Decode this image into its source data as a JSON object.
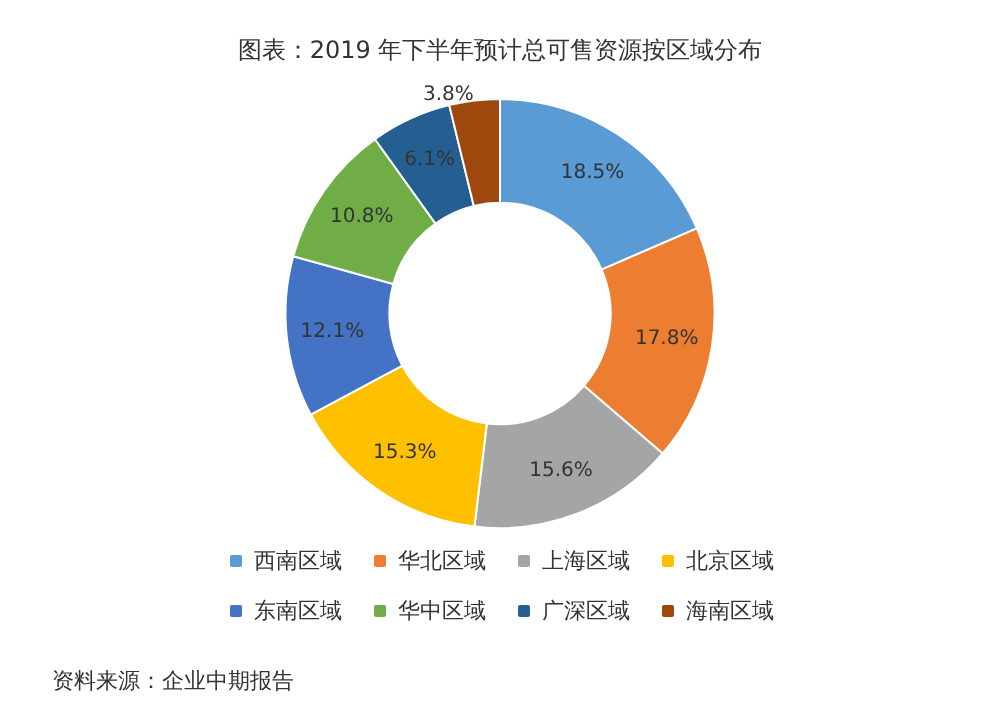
{
  "chart_data": {
    "type": "donut",
    "title": "图表：2019 年下半年预计总可售资源按区域分布",
    "categories": [
      "西南区域",
      "华北区域",
      "上海区域",
      "北京区域",
      "东南区域",
      "华中区域",
      "广深区域",
      "海南区域"
    ],
    "values": [
      18.5,
      17.8,
      15.6,
      15.3,
      12.1,
      10.8,
      6.1,
      3.8
    ],
    "colors": [
      "#5b9bd5",
      "#ed7d31",
      "#a5a5a5",
      "#ffc000",
      "#4472c4",
      "#70ad47",
      "#255e91",
      "#9e480e"
    ],
    "value_labels": [
      "18.5%",
      "17.8%",
      "15.6%",
      "15.3%",
      "12.1%",
      "10.8%",
      "6.1%",
      "3.8%"
    ],
    "legend": "bottom",
    "annotations": [
      "资料来源：企业中期报告"
    ]
  }
}
